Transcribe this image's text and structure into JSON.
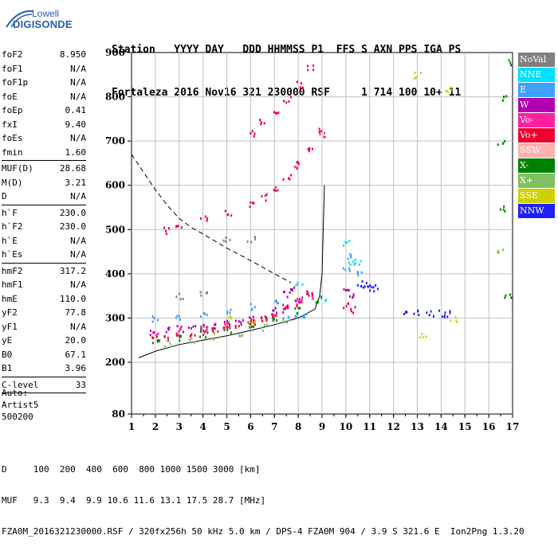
{
  "logo": {
    "line1": "Lowell",
    "line2": "DIGISONDE"
  },
  "header": {
    "line1": "Station   YYYY DAY   DDD HHMMSS P1  FFS S AXN PPS IGA PS",
    "line2": "Fortaleza 2016 Nov16 321 230000 RSF     1 714 100 10+ 11"
  },
  "params": {
    "group1": [
      {
        "name": "foF2",
        "value": "8.950"
      },
      {
        "name": "foF1",
        "value": "N/A"
      },
      {
        "name": "foF1p",
        "value": "N/A"
      },
      {
        "name": "foE",
        "value": "N/A"
      },
      {
        "name": "foEp",
        "value": "0.41"
      },
      {
        "name": "fxI",
        "value": "9.40"
      },
      {
        "name": "foEs",
        "value": "N/A"
      },
      {
        "name": "fmin",
        "value": "1.60"
      }
    ],
    "group2": [
      {
        "name": "MUF(D)",
        "value": "28.68"
      },
      {
        "name": "M(D)",
        "value": "3.21"
      },
      {
        "name": "D",
        "value": "N/A"
      }
    ],
    "group3": [
      {
        "name": "h`F",
        "value": "230.0"
      },
      {
        "name": "h`F2",
        "value": "230.0"
      },
      {
        "name": "h`E",
        "value": "N/A"
      },
      {
        "name": "h`Es",
        "value": "N/A"
      }
    ],
    "group4": [
      {
        "name": "hmF2",
        "value": "317.2"
      },
      {
        "name": "hmF1",
        "value": "N/A"
      },
      {
        "name": "hmE",
        "value": "110.0"
      },
      {
        "name": "yF2",
        "value": "77.8"
      },
      {
        "name": "yF1",
        "value": "N/A"
      },
      {
        "name": "yE",
        "value": "20.0"
      },
      {
        "name": "B0",
        "value": "67.1"
      },
      {
        "name": "B1",
        "value": "3.96"
      }
    ],
    "group5": [
      {
        "name": "C-level",
        "value": "33"
      }
    ]
  },
  "auto": {
    "line1": "Auto:",
    "line2": "Artist5",
    "line3": "500200"
  },
  "legend": [
    {
      "label": "NoVal",
      "color": "#808080"
    },
    {
      "label": "NNE",
      "color": "#00e0ff"
    },
    {
      "label": "E",
      "color": "#40a0ff"
    },
    {
      "label": "W",
      "color": "#b000b0"
    },
    {
      "label": "Vo-",
      "color": "#ff20a0"
    },
    {
      "label": "Vo+",
      "color": "#f00030"
    },
    {
      "label": "SSW",
      "color": "#ffb0b0"
    },
    {
      "label": "X-",
      "color": "#008000"
    },
    {
      "label": "X+",
      "color": "#80c060"
    },
    {
      "label": "SSE",
      "color": "#d0d000"
    },
    {
      "label": "NNW",
      "color": "#2020ff"
    }
  ],
  "footer": {
    "line1": "D     100  200  400  600  800 1000 1500 3000 [km]",
    "line2": "MUF   9.3  9.4  9.9 10.6 11.6 13.1 17.5 28.7 [MHz]",
    "line3": "FZA0M_2016321230000.RSF / 320fx256h 50 kHz 5.0 km / DPS-4 FZA0M 904 / 3.9 S 321.6 E  Ion2Png 1.3.20"
  },
  "chart_data": {
    "type": "scatter",
    "title": "",
    "xlabel": "",
    "ylabel": "",
    "xlim": [
      1,
      17
    ],
    "ylim": [
      80,
      900
    ],
    "x_ticks": [
      1,
      2,
      3,
      4,
      5,
      6,
      7,
      8,
      9,
      10,
      11,
      12,
      13,
      14,
      15,
      16,
      17
    ],
    "y_ticks": [
      80,
      200,
      300,
      400,
      500,
      600,
      700,
      800,
      900
    ],
    "grid": true,
    "series": [
      {
        "name": "W",
        "color": "#b000b0",
        "points": [
          [
            1.9,
            270
          ],
          [
            2.5,
            275
          ],
          [
            3,
            278
          ],
          [
            3.5,
            280
          ],
          [
            4,
            283
          ],
          [
            4.5,
            285
          ],
          [
            5,
            290
          ],
          [
            5.5,
            295
          ],
          [
            6,
            300
          ],
          [
            6.5,
            308
          ],
          [
            7,
            318
          ],
          [
            7.5,
            330
          ],
          [
            8,
            345
          ],
          [
            8.5,
            358
          ],
          [
            7.5,
            355
          ],
          [
            7.8,
            365
          ],
          [
            10,
            360
          ],
          [
            10.3,
            355
          ]
        ]
      },
      {
        "name": "E",
        "color": "#40a0ff",
        "points": [
          [
            2,
            300
          ],
          [
            3,
            305
          ],
          [
            4,
            312
          ],
          [
            5,
            320
          ],
          [
            6,
            328
          ],
          [
            7,
            340
          ],
          [
            7.5,
            300
          ],
          [
            8,
            305
          ],
          [
            8.3,
            310
          ],
          [
            10,
            410
          ],
          [
            10.2,
            440
          ],
          [
            10.5,
            400
          ]
        ]
      },
      {
        "name": "NNE",
        "color": "#00e0ff",
        "points": [
          [
            10,
            470
          ],
          [
            10.2,
            430
          ],
          [
            10.5,
            430
          ],
          [
            9,
            345
          ],
          [
            8,
            380
          ]
        ]
      },
      {
        "name": "NNW",
        "color": "#2020ff",
        "points": [
          [
            10.6,
            375
          ],
          [
            10.8,
            380
          ],
          [
            11,
            370
          ],
          [
            11.2,
            370
          ],
          [
            12.5,
            312
          ],
          [
            13,
            312
          ],
          [
            13.5,
            312
          ],
          [
            14,
            312
          ],
          [
            14.3,
            312
          ]
        ]
      },
      {
        "name": "Vo+",
        "color": "#f00030",
        "points": [
          [
            2,
            255
          ],
          [
            2.5,
            258
          ],
          [
            3,
            262
          ],
          [
            3.5,
            266
          ],
          [
            4,
            270
          ],
          [
            4.5,
            275
          ],
          [
            5,
            280
          ],
          [
            5.5,
            285
          ],
          [
            6,
            292
          ],
          [
            6.5,
            300
          ],
          [
            7,
            310
          ],
          [
            7.5,
            322
          ],
          [
            8,
            336
          ],
          [
            8.5,
            352
          ],
          [
            2.5,
            500
          ],
          [
            3,
            510
          ],
          [
            4,
            525
          ],
          [
            5,
            540
          ],
          [
            6,
            560
          ],
          [
            6.5,
            575
          ],
          [
            7,
            595
          ],
          [
            7.5,
            620
          ],
          [
            8,
            650
          ],
          [
            8.5,
            680
          ],
          [
            9,
            725
          ],
          [
            6,
            720
          ],
          [
            6.5,
            745
          ],
          [
            7,
            770
          ],
          [
            7.5,
            795
          ],
          [
            8,
            830
          ],
          [
            8.5,
            868
          ],
          [
            10,
            330
          ],
          [
            10.3,
            320
          ]
        ]
      },
      {
        "name": "Vo-",
        "color": "#ff20a0",
        "points": [
          [
            2,
            265
          ],
          [
            3,
            270
          ],
          [
            4,
            276
          ],
          [
            5,
            284
          ],
          [
            6,
            296
          ],
          [
            7,
            315
          ],
          [
            8,
            340
          ],
          [
            9,
            715
          ],
          [
            7.8,
            640
          ]
        ]
      },
      {
        "name": "X-",
        "color": "#008000",
        "points": [
          [
            2,
            250
          ],
          [
            3,
            258
          ],
          [
            4,
            265
          ],
          [
            5,
            273
          ],
          [
            6,
            283
          ],
          [
            7,
            298
          ],
          [
            8,
            320
          ],
          [
            8.8,
            345
          ],
          [
            16.5,
            700
          ],
          [
            16.7,
            800
          ],
          [
            16.9,
            880
          ],
          [
            16.6,
            550
          ],
          [
            16.8,
            350
          ]
        ]
      },
      {
        "name": "X+",
        "color": "#80c060",
        "points": [
          [
            2.5,
            245
          ],
          [
            3.5,
            252
          ],
          [
            4.5,
            260
          ],
          [
            5.5,
            268
          ],
          [
            6.5,
            280
          ],
          [
            7.5,
            300
          ],
          [
            16.5,
            450
          ]
        ]
      },
      {
        "name": "SSE",
        "color": "#d0d000",
        "points": [
          [
            5,
            300
          ],
          [
            6,
            295
          ],
          [
            13,
            850
          ],
          [
            14.3,
            820
          ],
          [
            14.5,
            300
          ],
          [
            13.2,
            260
          ]
        ]
      },
      {
        "name": "NoVal",
        "color": "#808080",
        "points": [
          [
            3,
            350
          ],
          [
            4,
            355
          ],
          [
            5,
            480
          ],
          [
            6,
            480
          ],
          [
            4,
            280
          ]
        ]
      }
    ],
    "lines": [
      {
        "name": "O-trace fit",
        "style": "solid",
        "points": [
          [
            1.3,
            210
          ],
          [
            2,
            225
          ],
          [
            3,
            240
          ],
          [
            4,
            250
          ],
          [
            5,
            260
          ],
          [
            6,
            272
          ],
          [
            7,
            285
          ],
          [
            8,
            300
          ],
          [
            8.7,
            320
          ],
          [
            8.9,
            350
          ],
          [
            9,
            400
          ],
          [
            9.1,
            600
          ]
        ]
      },
      {
        "name": "dashed profile",
        "style": "dashed",
        "points": [
          [
            1,
            670
          ],
          [
            1.5,
            630
          ],
          [
            2,
            590
          ],
          [
            2.5,
            555
          ],
          [
            3,
            525
          ],
          [
            3.5,
            505
          ],
          [
            4,
            490
          ],
          [
            5,
            458
          ],
          [
            6,
            430
          ],
          [
            7,
            400
          ],
          [
            7.7,
            380
          ]
        ]
      }
    ]
  }
}
